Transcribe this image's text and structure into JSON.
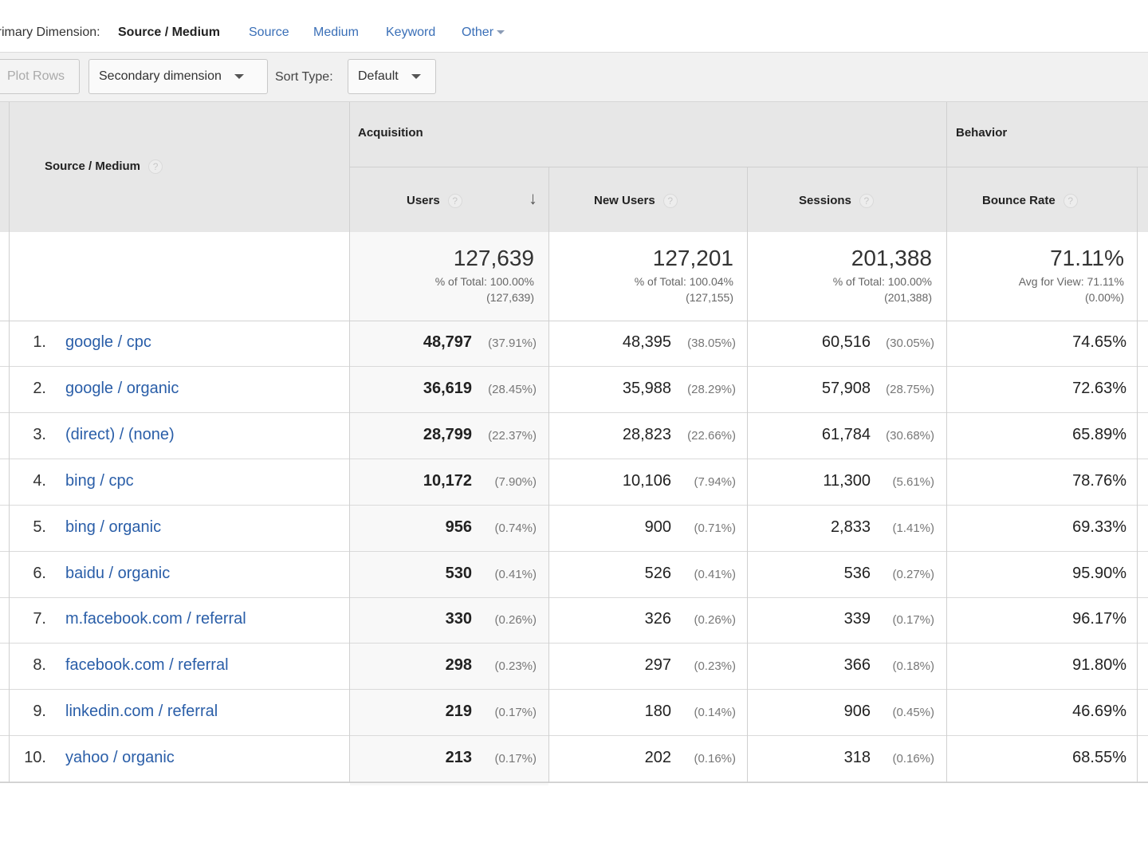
{
  "primary_dimension": {
    "label": "Primary Dimension:",
    "current": "Source / Medium",
    "links": [
      "Source",
      "Medium",
      "Keyword",
      "Other"
    ]
  },
  "toolbar": {
    "plot_rows": "Plot Rows",
    "secondary_dimension": "Secondary dimension",
    "sort_type_label": "Sort Type:",
    "sort_type_value": "Default"
  },
  "table": {
    "dimension_header": "Source / Medium",
    "groups": {
      "acquisition": "Acquisition",
      "behavior": "Behavior"
    },
    "columns": {
      "users": "Users",
      "new_users": "New Users",
      "sessions": "Sessions",
      "bounce_rate": "Bounce Rate"
    },
    "totals": {
      "users": {
        "value": "127,639",
        "line1": "% of Total: 100.00%",
        "line2": "(127,639)"
      },
      "new_users": {
        "value": "127,201",
        "line1": "% of Total: 100.04%",
        "line2": "(127,155)"
      },
      "sessions": {
        "value": "201,388",
        "line1": "% of Total: 100.00%",
        "line2": "(201,388)"
      },
      "bounce_rate": {
        "value": "71.11%",
        "line1": "Avg for View: 71.11%",
        "line2": "(0.00%)"
      }
    },
    "rows": [
      {
        "idx": "1.",
        "source": "google / cpc",
        "users": "48,797",
        "users_pct": "(37.91%)",
        "new_users": "48,395",
        "new_users_pct": "(38.05%)",
        "sessions": "60,516",
        "sessions_pct": "(30.05%)",
        "bounce": "74.65%"
      },
      {
        "idx": "2.",
        "source": "google / organic",
        "users": "36,619",
        "users_pct": "(28.45%)",
        "new_users": "35,988",
        "new_users_pct": "(28.29%)",
        "sessions": "57,908",
        "sessions_pct": "(28.75%)",
        "bounce": "72.63%"
      },
      {
        "idx": "3.",
        "source": "(direct) / (none)",
        "users": "28,799",
        "users_pct": "(22.37%)",
        "new_users": "28,823",
        "new_users_pct": "(22.66%)",
        "sessions": "61,784",
        "sessions_pct": "(30.68%)",
        "bounce": "65.89%"
      },
      {
        "idx": "4.",
        "source": "bing / cpc",
        "users": "10,172",
        "users_pct": "(7.90%)",
        "new_users": "10,106",
        "new_users_pct": "(7.94%)",
        "sessions": "11,300",
        "sessions_pct": "(5.61%)",
        "bounce": "78.76%"
      },
      {
        "idx": "5.",
        "source": "bing / organic",
        "users": "956",
        "users_pct": "(0.74%)",
        "new_users": "900",
        "new_users_pct": "(0.71%)",
        "sessions": "2,833",
        "sessions_pct": "(1.41%)",
        "bounce": "69.33%"
      },
      {
        "idx": "6.",
        "source": "baidu / organic",
        "users": "530",
        "users_pct": "(0.41%)",
        "new_users": "526",
        "new_users_pct": "(0.41%)",
        "sessions": "536",
        "sessions_pct": "(0.27%)",
        "bounce": "95.90%"
      },
      {
        "idx": "7.",
        "source": "m.facebook.com / referral",
        "users": "330",
        "users_pct": "(0.26%)",
        "new_users": "326",
        "new_users_pct": "(0.26%)",
        "sessions": "339",
        "sessions_pct": "(0.17%)",
        "bounce": "96.17%"
      },
      {
        "idx": "8.",
        "source": "facebook.com / referral",
        "users": "298",
        "users_pct": "(0.23%)",
        "new_users": "297",
        "new_users_pct": "(0.23%)",
        "sessions": "366",
        "sessions_pct": "(0.18%)",
        "bounce": "91.80%"
      },
      {
        "idx": "9.",
        "source": "linkedin.com / referral",
        "users": "219",
        "users_pct": "(0.17%)",
        "new_users": "180",
        "new_users_pct": "(0.14%)",
        "sessions": "906",
        "sessions_pct": "(0.45%)",
        "bounce": "46.69%"
      },
      {
        "idx": "10.",
        "source": "yahoo / organic",
        "users": "213",
        "users_pct": "(0.17%)",
        "new_users": "202",
        "new_users_pct": "(0.16%)",
        "sessions": "318",
        "sessions_pct": "(0.16%)",
        "bounce": "68.55%"
      }
    ]
  },
  "colors": {
    "link": "#2a5ea8",
    "header_bg": "#e7e7e7",
    "toolbar_bg": "#f1f1f1"
  }
}
